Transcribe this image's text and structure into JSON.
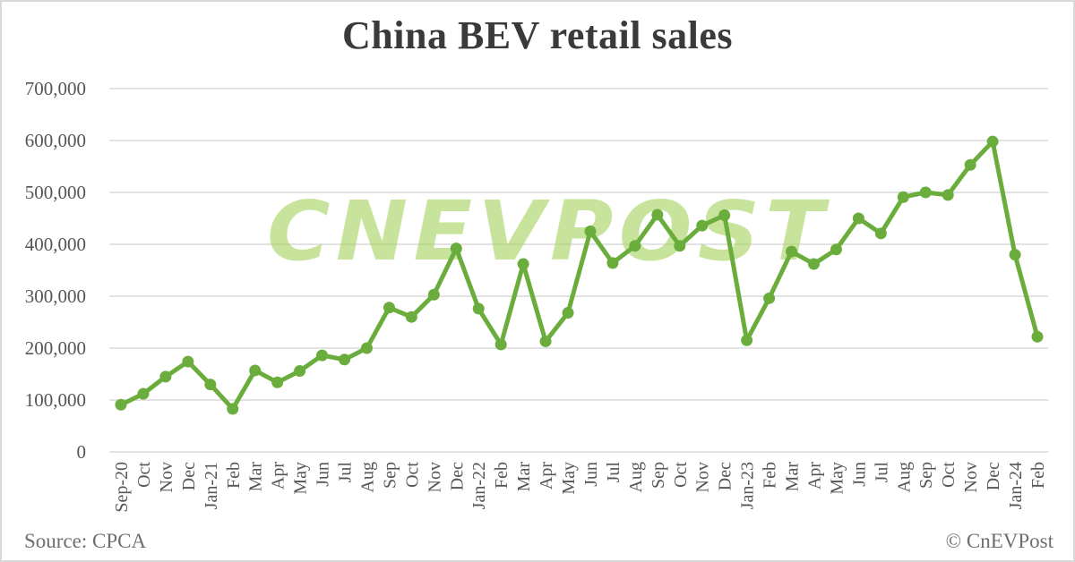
{
  "chart_data": {
    "type": "line",
    "title": "China BEV retail sales",
    "xlabel": "",
    "ylabel": "",
    "ylim": [
      0,
      700000
    ],
    "yticks": [
      0,
      100000,
      200000,
      300000,
      400000,
      500000,
      600000,
      700000
    ],
    "ytick_labels": [
      "0",
      "100,000",
      "200,000",
      "300,000",
      "400,000",
      "500,000",
      "600,000",
      "700,000"
    ],
    "grid": true,
    "legend": "none",
    "categories": [
      "Sep-20",
      "Oct",
      "Nov",
      "Dec",
      "Jan-21",
      "Feb",
      "Mar",
      "Apr",
      "May",
      "Jun",
      "Jul",
      "Aug",
      "Sep",
      "Oct",
      "Nov",
      "Dec",
      "Jan-22",
      "Feb",
      "Mar",
      "Apr",
      "May",
      "Jun",
      "Jul",
      "Aug",
      "Sep",
      "Oct",
      "Nov",
      "Dec",
      "Jan-23",
      "Feb",
      "Mar",
      "Apr",
      "May",
      "Jun",
      "Jul",
      "Aug",
      "Sep",
      "Oct",
      "Nov",
      "Dec",
      "Jan-24",
      "Feb"
    ],
    "series": [
      {
        "name": "BEV retail sales",
        "color": "#6aad3d",
        "values": [
          91000,
          112000,
          145000,
          174000,
          130000,
          83000,
          157000,
          134000,
          156000,
          186000,
          178000,
          200000,
          278000,
          260000,
          303000,
          392000,
          276000,
          207000,
          362000,
          213000,
          268000,
          425000,
          364000,
          397000,
          457000,
          397000,
          436000,
          456000,
          215000,
          296000,
          386000,
          362000,
          390000,
          450000,
          421000,
          491000,
          500000,
          495000,
          553000,
          598000,
          380000,
          222000
        ]
      }
    ],
    "annotations": [
      "Source: CPCA",
      "© CnEVPost"
    ]
  },
  "header": {
    "title": "China BEV retail sales"
  },
  "watermark": {
    "text": "CNEVPOST",
    "color": "#a7d25f"
  },
  "footer": {
    "source": "Source: CPCA",
    "credit": "© CnEVPost"
  },
  "colors": {
    "line": "#6aad3d",
    "grid": "#d9d9d9",
    "text": "#555555",
    "title": "#3a3a3a"
  }
}
